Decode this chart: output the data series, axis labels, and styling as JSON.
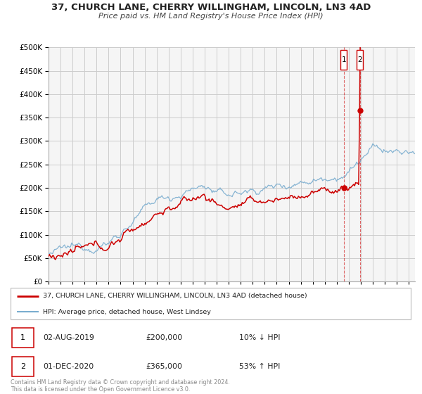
{
  "title": "37, CHURCH LANE, CHERRY WILLINGHAM, LINCOLN, LN3 4AD",
  "subtitle": "Price paid vs. HM Land Registry's House Price Index (HPI)",
  "ylim": [
    0,
    500000
  ],
  "xlim_start": 1995.0,
  "xlim_end": 2025.5,
  "red_line_color": "#cc0000",
  "blue_line_color": "#7aadcf",
  "grid_color": "#cccccc",
  "background_color": "#f5f5f5",
  "sale1_date": 2019.58,
  "sale1_price": 200000,
  "sale2_date": 2020.92,
  "sale2_price": 365000,
  "legend_line1": "37, CHURCH LANE, CHERRY WILLINGHAM, LINCOLN, LN3 4AD (detached house)",
  "legend_line2": "HPI: Average price, detached house, West Lindsey",
  "table_row1": [
    "1",
    "02-AUG-2019",
    "£200,000",
    "10% ↓ HPI"
  ],
  "table_row2": [
    "2",
    "01-DEC-2020",
    "£365,000",
    "53% ↑ HPI"
  ],
  "footnote1": "Contains HM Land Registry data © Crown copyright and database right 2024.",
  "footnote2": "This data is licensed under the Open Government Licence v3.0."
}
